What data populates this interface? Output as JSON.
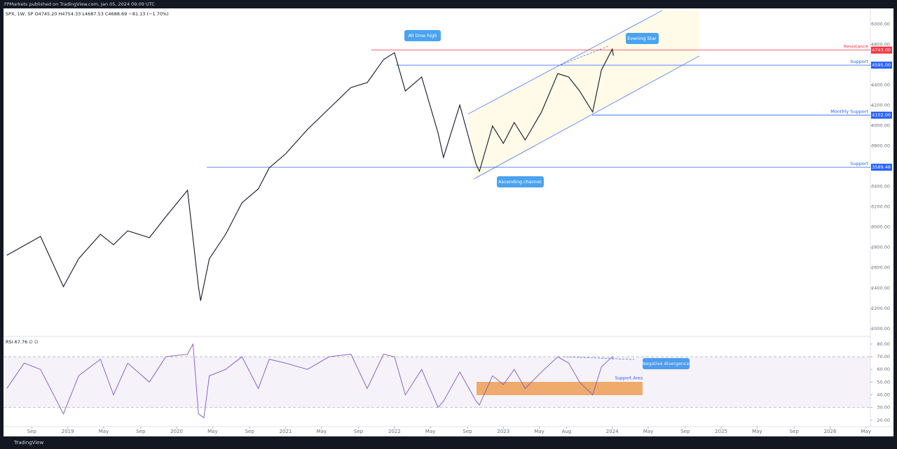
{
  "publisher": "FPMarkets published on TradingView.com, Jan 05, 2024 09:09 UTC",
  "brand": "TradingView",
  "chart_data": [
    {
      "type": "line",
      "title": "SPX, 1W, SP  O4745.20  H4754.33  L4687.53  C4688.69  −81.13 (−1.70%)",
      "color": "#131722",
      "x": [
        2018.44,
        2018.75,
        2018.96,
        2019.1,
        2019.3,
        2019.42,
        2019.55,
        2019.75,
        2019.9,
        2020.1,
        2020.2,
        2020.22,
        2020.3,
        2020.45,
        2020.6,
        2020.75,
        2020.85,
        2021.0,
        2021.2,
        2021.4,
        2021.6,
        2021.75,
        2021.9,
        2022.0,
        2022.1,
        2022.25,
        2022.4,
        2022.45,
        2022.6,
        2022.75,
        2022.78,
        2022.9,
        2023.0,
        2023.1,
        2023.2,
        2023.35,
        2023.5,
        2023.6,
        2023.7,
        2023.82,
        2023.9,
        2024.0,
        2024.01
      ],
      "values": [
        2722,
        2908,
        2413,
        2688,
        2929,
        2826,
        2963,
        2895,
        3101,
        3363,
        2413,
        2275,
        2688,
        2929,
        3239,
        3376,
        3583,
        3721,
        3961,
        4168,
        4374,
        4423,
        4650,
        4718,
        4340,
        4478,
        3927,
        3686,
        4202,
        3617,
        3549,
        3996,
        3824,
        4030,
        3858,
        4133,
        4512,
        4478,
        4340,
        4133,
        4547,
        4753,
        4689
      ],
      "xlim": [
        2018.41,
        2026.37
      ],
      "xticks": [
        {
          "value": 2018.67,
          "label": "Sep"
        },
        2019,
        {
          "value": 2019.33,
          "label": "May"
        },
        {
          "value": 2019.67,
          "label": "Sep"
        },
        2020,
        {
          "value": 2020.33,
          "label": "May"
        },
        {
          "value": 2020.67,
          "label": "Sep"
        },
        2021,
        {
          "value": 2021.33,
          "label": "May"
        },
        {
          "value": 2021.67,
          "label": "Sep"
        },
        2022,
        {
          "value": 2022.33,
          "label": "May"
        },
        {
          "value": 2022.67,
          "label": "Sep"
        },
        2023,
        {
          "value": 2023.33,
          "label": "May"
        },
        {
          "value": 2023.58,
          "label": "Aug"
        },
        2024,
        {
          "value": 2024.33,
          "label": "May"
        },
        {
          "value": 2024.67,
          "label": "Sep"
        },
        2025,
        {
          "value": 2025.33,
          "label": "May"
        },
        {
          "value": 2025.67,
          "label": "Sep"
        },
        2026,
        {
          "value": 2026.33,
          "label": "May"
        }
      ],
      "ylim": [
        1930,
        5140
      ],
      "yticks": [
        {
          "value": 2000,
          "label": "2000.00"
        },
        {
          "value": 2200,
          "label": "2200.00"
        },
        {
          "value": 2400,
          "label": "2400.00"
        },
        {
          "value": 2600,
          "label": "2600.00"
        },
        {
          "value": 2800,
          "label": "2800.00"
        },
        {
          "value": 3000,
          "label": "3000.00"
        },
        {
          "value": 3200,
          "label": "3200.00"
        },
        {
          "value": 3400,
          "label": "3400.00"
        },
        {
          "value": 3600,
          "label": "3600.00"
        },
        {
          "value": 3800,
          "label": "3800.00"
        },
        {
          "value": 4000,
          "label": "4000.00"
        },
        {
          "value": 4200,
          "label": "4200.00"
        },
        {
          "value": 4400,
          "label": "4400.00"
        },
        {
          "value": 4600,
          "label": "4600.00"
        },
        {
          "value": 4800,
          "label": "4800.00"
        },
        {
          "value": 5000,
          "label": "5000.00"
        }
      ],
      "levels": [
        {
          "name": "Resistance",
          "value": 4743,
          "value_label": "4743.00",
          "color": "#f23645"
        },
        {
          "name": "Support",
          "value": 4595,
          "value_label": "4595.00",
          "color": "#2962ff"
        },
        {
          "name": "Monthly Support",
          "value": 4102,
          "value_label": "4102.00",
          "color": "#2962ff"
        },
        {
          "name": "Support",
          "value": 3589.48,
          "value_label": "3589.48",
          "color": "#2962ff"
        }
      ],
      "annotations": [
        "All time high",
        "Evening Star",
        "Ascending channel"
      ]
    },
    {
      "type": "line",
      "title": "RSI  67.76  ∅  ∅",
      "color": "#7e57c2",
      "x": [
        2018.44,
        2018.6,
        2018.75,
        2018.96,
        2019.1,
        2019.3,
        2019.42,
        2019.55,
        2019.75,
        2019.9,
        2020.1,
        2020.15,
        2020.2,
        2020.25,
        2020.3,
        2020.45,
        2020.6,
        2020.75,
        2020.85,
        2021.0,
        2021.2,
        2021.4,
        2021.6,
        2021.75,
        2021.9,
        2022.0,
        2022.1,
        2022.25,
        2022.4,
        2022.45,
        2022.6,
        2022.75,
        2022.78,
        2022.9,
        2023.0,
        2023.1,
        2023.2,
        2023.35,
        2023.5,
        2023.6,
        2023.7,
        2023.82,
        2023.9,
        2024.0,
        2024.01
      ],
      "values": [
        45,
        65,
        60,
        25,
        55,
        68,
        40,
        65,
        50,
        70,
        72,
        80,
        25,
        22,
        55,
        60,
        70,
        45,
        68,
        65,
        60,
        70,
        72,
        45,
        72,
        70,
        40,
        60,
        30,
        35,
        58,
        35,
        32,
        55,
        48,
        60,
        45,
        58,
        70,
        65,
        50,
        40,
        62,
        70,
        67.76
      ],
      "ylim": [
        15,
        86
      ],
      "yticks": [
        {
          "value": 20,
          "label": "20.00"
        },
        {
          "value": 30,
          "label": "30.00"
        },
        {
          "value": 40,
          "label": "40.00"
        },
        {
          "value": 50,
          "label": "50.00"
        },
        {
          "value": 60,
          "label": "60.00"
        },
        {
          "value": 70,
          "label": "70.00"
        },
        {
          "value": 80,
          "label": "80.00"
        }
      ],
      "bands": [
        30,
        70
      ],
      "annotations": [
        "Negative divergence",
        "Support Area"
      ]
    }
  ]
}
